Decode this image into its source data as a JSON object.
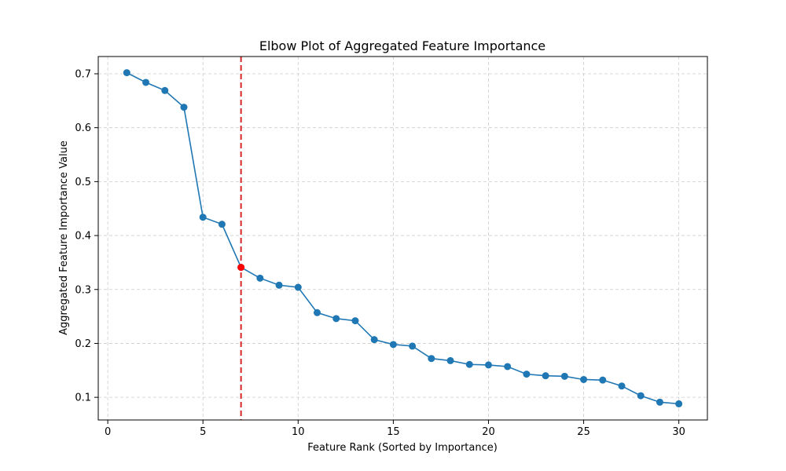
{
  "chart_data": {
    "type": "line",
    "title": "Elbow Plot of Aggregated Feature Importance",
    "xlabel": "Feature Rank (Sorted by Importance)",
    "ylabel": "Aggregated Feature Importance Value",
    "xlim": [
      -0.5,
      31.5
    ],
    "ylim": [
      0.058,
      0.732
    ],
    "x_ticks": [
      0,
      5,
      10,
      15,
      20,
      25,
      30
    ],
    "y_ticks": [
      0.1,
      0.2,
      0.3,
      0.4,
      0.5,
      0.6,
      0.7
    ],
    "grid": true,
    "series": [
      {
        "x": [
          1,
          2,
          3,
          4,
          5,
          6,
          7,
          8,
          9,
          10,
          11,
          12,
          13,
          14,
          15,
          16,
          17,
          18,
          19,
          20,
          21,
          22,
          23,
          24,
          25,
          26,
          27,
          28,
          29,
          30
        ],
        "values": [
          0.702,
          0.684,
          0.669,
          0.638,
          0.434,
          0.421,
          0.341,
          0.321,
          0.308,
          0.304,
          0.257,
          0.246,
          0.242,
          0.207,
          0.198,
          0.195,
          0.172,
          0.168,
          0.161,
          0.16,
          0.157,
          0.143,
          0.14,
          0.139,
          0.133,
          0.132,
          0.121,
          0.103,
          0.091,
          0.088
        ],
        "color": "#1f77b4",
        "marker": "circle"
      }
    ],
    "highlight_point": {
      "x": 7,
      "value": 0.341,
      "color": "#ff0000"
    },
    "vertical_line": {
      "x": 7,
      "color": "#d62728",
      "style": "dashed"
    }
  }
}
